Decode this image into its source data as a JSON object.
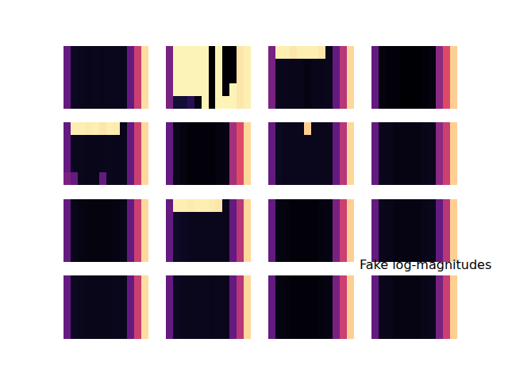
{
  "chart_data": {
    "type": "heatmap",
    "title": "Fake log-magnitudes",
    "zlim": [
      0,
      1
    ],
    "tick_labels": false,
    "panels": [
      {
        "cells": [
          [
            0.3,
            0.06,
            0.05,
            0.04,
            0.05,
            0.04,
            0.05,
            0.05,
            0.05,
            0.3,
            0.55,
            0.93
          ],
          [
            0.3,
            0.06,
            0.05,
            0.04,
            0.05,
            0.04,
            0.05,
            0.05,
            0.05,
            0.3,
            0.55,
            0.93
          ],
          [
            0.3,
            0.06,
            0.05,
            0.04,
            0.05,
            0.04,
            0.05,
            0.05,
            0.05,
            0.3,
            0.55,
            0.93
          ],
          [
            0.3,
            0.06,
            0.05,
            0.04,
            0.05,
            0.04,
            0.05,
            0.05,
            0.05,
            0.3,
            0.55,
            0.93
          ],
          [
            0.3,
            0.06,
            0.05,
            0.04,
            0.05,
            0.04,
            0.05,
            0.05,
            0.05,
            0.3,
            0.55,
            0.93
          ]
        ]
      },
      {
        "cells": [
          [
            0.35,
            0.98,
            0.98,
            0.98,
            0.98,
            0.98,
            0.0,
            0.98,
            0.0,
            0.0,
            0.95,
            0.97
          ],
          [
            0.35,
            0.98,
            0.98,
            0.98,
            0.98,
            0.98,
            0.0,
            0.98,
            0.0,
            0.0,
            0.95,
            0.97
          ],
          [
            0.35,
            0.98,
            0.98,
            0.98,
            0.98,
            0.98,
            0.0,
            0.98,
            0.0,
            0.0,
            0.95,
            0.97
          ],
          [
            0.35,
            0.98,
            0.98,
            0.98,
            0.98,
            0.98,
            0.0,
            0.98,
            0.0,
            0.98,
            0.95,
            0.97
          ],
          [
            0.35,
            0.1,
            0.1,
            0.15,
            0.02,
            0.98,
            0.0,
            0.98,
            0.98,
            0.98,
            0.95,
            0.97
          ]
        ]
      },
      {
        "cells": [
          [
            0.35,
            0.97,
            0.97,
            0.95,
            0.97,
            0.97,
            0.97,
            0.95,
            0.04,
            0.3,
            0.5,
            0.92
          ],
          [
            0.35,
            0.05,
            0.05,
            0.04,
            0.04,
            0.03,
            0.04,
            0.04,
            0.05,
            0.3,
            0.5,
            0.92
          ],
          [
            0.35,
            0.05,
            0.05,
            0.04,
            0.04,
            0.03,
            0.04,
            0.04,
            0.05,
            0.3,
            0.5,
            0.92
          ],
          [
            0.35,
            0.05,
            0.05,
            0.04,
            0.04,
            0.03,
            0.04,
            0.04,
            0.05,
            0.3,
            0.5,
            0.92
          ],
          [
            0.35,
            0.05,
            0.05,
            0.04,
            0.04,
            0.03,
            0.04,
            0.04,
            0.05,
            0.3,
            0.5,
            0.92
          ]
        ]
      },
      {
        "cells": [
          [
            0.3,
            0.02,
            0.01,
            0.01,
            0.0,
            0.0,
            0.0,
            0.01,
            0.02,
            0.4,
            0.6,
            0.9
          ],
          [
            0.3,
            0.02,
            0.01,
            0.01,
            0.0,
            0.0,
            0.0,
            0.01,
            0.02,
            0.4,
            0.6,
            0.9
          ],
          [
            0.3,
            0.02,
            0.01,
            0.01,
            0.0,
            0.0,
            0.0,
            0.01,
            0.02,
            0.4,
            0.6,
            0.9
          ],
          [
            0.3,
            0.02,
            0.01,
            0.01,
            0.0,
            0.0,
            0.0,
            0.01,
            0.02,
            0.4,
            0.6,
            0.9
          ],
          [
            0.3,
            0.02,
            0.01,
            0.01,
            0.0,
            0.0,
            0.0,
            0.01,
            0.02,
            0.4,
            0.6,
            0.9
          ]
        ]
      },
      {
        "cells": [
          [
            0.3,
            0.97,
            0.97,
            0.96,
            0.97,
            0.95,
            0.97,
            0.96,
            0.04,
            0.3,
            0.55,
            0.92
          ],
          [
            0.3,
            0.05,
            0.05,
            0.04,
            0.04,
            0.04,
            0.05,
            0.04,
            0.05,
            0.3,
            0.55,
            0.92
          ],
          [
            0.3,
            0.05,
            0.05,
            0.04,
            0.04,
            0.04,
            0.05,
            0.04,
            0.05,
            0.3,
            0.55,
            0.92
          ],
          [
            0.3,
            0.05,
            0.05,
            0.04,
            0.04,
            0.04,
            0.05,
            0.04,
            0.05,
            0.3,
            0.55,
            0.92
          ],
          [
            0.35,
            0.3,
            0.05,
            0.04,
            0.04,
            0.3,
            0.05,
            0.04,
            0.05,
            0.3,
            0.55,
            0.92
          ]
        ]
      },
      {
        "cells": [
          [
            0.3,
            0.04,
            0.02,
            0.01,
            0.01,
            0.01,
            0.01,
            0.02,
            0.03,
            0.45,
            0.6,
            0.92
          ],
          [
            0.3,
            0.04,
            0.02,
            0.01,
            0.01,
            0.01,
            0.01,
            0.02,
            0.03,
            0.45,
            0.6,
            0.92
          ],
          [
            0.3,
            0.04,
            0.02,
            0.01,
            0.01,
            0.01,
            0.01,
            0.02,
            0.03,
            0.45,
            0.6,
            0.92
          ],
          [
            0.3,
            0.04,
            0.02,
            0.01,
            0.01,
            0.01,
            0.01,
            0.02,
            0.03,
            0.45,
            0.6,
            0.92
          ],
          [
            0.3,
            0.04,
            0.02,
            0.01,
            0.01,
            0.01,
            0.01,
            0.02,
            0.03,
            0.45,
            0.6,
            0.92
          ]
        ]
      },
      {
        "cells": [
          [
            0.3,
            0.06,
            0.05,
            0.05,
            0.05,
            0.9,
            0.05,
            0.05,
            0.05,
            0.3,
            0.5,
            0.92
          ],
          [
            0.3,
            0.06,
            0.05,
            0.05,
            0.05,
            0.05,
            0.05,
            0.05,
            0.05,
            0.3,
            0.5,
            0.92
          ],
          [
            0.3,
            0.06,
            0.05,
            0.05,
            0.05,
            0.05,
            0.05,
            0.05,
            0.05,
            0.3,
            0.5,
            0.92
          ],
          [
            0.3,
            0.06,
            0.05,
            0.05,
            0.05,
            0.05,
            0.05,
            0.05,
            0.05,
            0.3,
            0.5,
            0.92
          ],
          [
            0.3,
            0.06,
            0.05,
            0.05,
            0.05,
            0.05,
            0.05,
            0.05,
            0.05,
            0.3,
            0.5,
            0.92
          ]
        ]
      },
      {
        "cells": [
          [
            0.3,
            0.05,
            0.04,
            0.03,
            0.03,
            0.03,
            0.03,
            0.04,
            0.05,
            0.4,
            0.55,
            0.9
          ],
          [
            0.3,
            0.05,
            0.04,
            0.03,
            0.03,
            0.03,
            0.03,
            0.04,
            0.05,
            0.4,
            0.55,
            0.9
          ],
          [
            0.3,
            0.05,
            0.04,
            0.03,
            0.03,
            0.03,
            0.03,
            0.04,
            0.05,
            0.4,
            0.55,
            0.9
          ],
          [
            0.3,
            0.05,
            0.04,
            0.03,
            0.03,
            0.03,
            0.03,
            0.04,
            0.05,
            0.4,
            0.55,
            0.9
          ],
          [
            0.3,
            0.05,
            0.04,
            0.03,
            0.03,
            0.03,
            0.03,
            0.04,
            0.05,
            0.4,
            0.55,
            0.9
          ]
        ]
      },
      {
        "cells": [
          [
            0.3,
            0.04,
            0.03,
            0.02,
            0.02,
            0.02,
            0.02,
            0.03,
            0.04,
            0.3,
            0.55,
            0.92
          ],
          [
            0.3,
            0.04,
            0.03,
            0.02,
            0.02,
            0.02,
            0.02,
            0.03,
            0.04,
            0.3,
            0.55,
            0.92
          ],
          [
            0.3,
            0.04,
            0.03,
            0.02,
            0.02,
            0.02,
            0.02,
            0.03,
            0.04,
            0.3,
            0.55,
            0.92
          ],
          [
            0.3,
            0.04,
            0.03,
            0.02,
            0.02,
            0.02,
            0.02,
            0.03,
            0.04,
            0.3,
            0.55,
            0.92
          ],
          [
            0.3,
            0.04,
            0.03,
            0.02,
            0.02,
            0.02,
            0.02,
            0.03,
            0.04,
            0.3,
            0.55,
            0.92
          ]
        ]
      },
      {
        "cells": [
          [
            0.3,
            0.97,
            0.97,
            0.96,
            0.97,
            0.97,
            0.96,
            0.95,
            0.05,
            0.3,
            0.5,
            0.92
          ],
          [
            0.3,
            0.07,
            0.06,
            0.05,
            0.05,
            0.05,
            0.05,
            0.05,
            0.05,
            0.3,
            0.5,
            0.92
          ],
          [
            0.3,
            0.07,
            0.06,
            0.05,
            0.05,
            0.05,
            0.05,
            0.05,
            0.05,
            0.3,
            0.5,
            0.92
          ],
          [
            0.3,
            0.07,
            0.06,
            0.05,
            0.05,
            0.05,
            0.05,
            0.05,
            0.05,
            0.3,
            0.5,
            0.92
          ],
          [
            0.3,
            0.07,
            0.06,
            0.05,
            0.05,
            0.05,
            0.05,
            0.05,
            0.05,
            0.3,
            0.5,
            0.92
          ]
        ]
      },
      {
        "cells": [
          [
            0.3,
            0.03,
            0.02,
            0.01,
            0.01,
            0.01,
            0.01,
            0.02,
            0.03,
            0.35,
            0.55,
            0.9
          ],
          [
            0.3,
            0.03,
            0.02,
            0.01,
            0.01,
            0.01,
            0.01,
            0.02,
            0.03,
            0.35,
            0.55,
            0.9
          ],
          [
            0.3,
            0.03,
            0.02,
            0.01,
            0.01,
            0.01,
            0.01,
            0.02,
            0.03,
            0.35,
            0.55,
            0.9
          ],
          [
            0.3,
            0.03,
            0.02,
            0.01,
            0.01,
            0.01,
            0.01,
            0.02,
            0.03,
            0.35,
            0.55,
            0.9
          ],
          [
            0.3,
            0.03,
            0.02,
            0.01,
            0.01,
            0.01,
            0.01,
            0.02,
            0.03,
            0.35,
            0.55,
            0.9
          ]
        ]
      },
      {
        "cells": [
          [
            0.3,
            0.05,
            0.04,
            0.03,
            0.03,
            0.03,
            0.03,
            0.04,
            0.05,
            0.3,
            0.5,
            0.9
          ],
          [
            0.3,
            0.05,
            0.04,
            0.03,
            0.03,
            0.03,
            0.03,
            0.04,
            0.05,
            0.3,
            0.5,
            0.9
          ],
          [
            0.3,
            0.05,
            0.04,
            0.03,
            0.03,
            0.03,
            0.03,
            0.04,
            0.05,
            0.3,
            0.5,
            0.9
          ],
          [
            0.3,
            0.05,
            0.04,
            0.03,
            0.03,
            0.03,
            0.03,
            0.04,
            0.05,
            0.3,
            0.5,
            0.9
          ],
          [
            0.3,
            0.05,
            0.04,
            0.03,
            0.03,
            0.03,
            0.03,
            0.04,
            0.05,
            0.3,
            0.5,
            0.9
          ]
        ]
      },
      {
        "cells": [
          [
            0.3,
            0.06,
            0.05,
            0.04,
            0.04,
            0.04,
            0.04,
            0.05,
            0.05,
            0.3,
            0.55,
            0.93
          ],
          [
            0.3,
            0.06,
            0.05,
            0.04,
            0.04,
            0.04,
            0.04,
            0.05,
            0.05,
            0.3,
            0.55,
            0.93
          ],
          [
            0.3,
            0.06,
            0.05,
            0.04,
            0.04,
            0.04,
            0.04,
            0.05,
            0.05,
            0.3,
            0.55,
            0.93
          ],
          [
            0.3,
            0.06,
            0.05,
            0.04,
            0.04,
            0.04,
            0.04,
            0.05,
            0.05,
            0.3,
            0.55,
            0.93
          ],
          [
            0.3,
            0.06,
            0.05,
            0.04,
            0.04,
            0.04,
            0.04,
            0.05,
            0.05,
            0.3,
            0.55,
            0.93
          ]
        ]
      },
      {
        "cells": [
          [
            0.3,
            0.06,
            0.05,
            0.05,
            0.05,
            0.05,
            0.04,
            0.05,
            0.05,
            0.3,
            0.5,
            0.92
          ],
          [
            0.3,
            0.06,
            0.05,
            0.05,
            0.05,
            0.05,
            0.04,
            0.05,
            0.05,
            0.3,
            0.5,
            0.92
          ],
          [
            0.3,
            0.06,
            0.05,
            0.05,
            0.05,
            0.05,
            0.04,
            0.05,
            0.05,
            0.3,
            0.5,
            0.92
          ],
          [
            0.3,
            0.06,
            0.05,
            0.05,
            0.05,
            0.05,
            0.04,
            0.05,
            0.05,
            0.3,
            0.5,
            0.92
          ],
          [
            0.3,
            0.06,
            0.05,
            0.05,
            0.05,
            0.05,
            0.04,
            0.05,
            0.05,
            0.3,
            0.5,
            0.92
          ]
        ]
      },
      {
        "cells": [
          [
            0.3,
            0.03,
            0.02,
            0.01,
            0.01,
            0.01,
            0.01,
            0.02,
            0.03,
            0.35,
            0.55,
            0.9
          ],
          [
            0.3,
            0.03,
            0.02,
            0.01,
            0.01,
            0.01,
            0.01,
            0.02,
            0.03,
            0.35,
            0.55,
            0.9
          ],
          [
            0.3,
            0.03,
            0.02,
            0.01,
            0.01,
            0.01,
            0.01,
            0.02,
            0.03,
            0.35,
            0.55,
            0.9
          ],
          [
            0.3,
            0.03,
            0.02,
            0.01,
            0.01,
            0.01,
            0.01,
            0.02,
            0.03,
            0.35,
            0.55,
            0.9
          ],
          [
            0.3,
            0.03,
            0.02,
            0.01,
            0.01,
            0.01,
            0.01,
            0.02,
            0.03,
            0.35,
            0.55,
            0.9
          ]
        ]
      },
      {
        "cells": [
          [
            0.3,
            0.05,
            0.04,
            0.03,
            0.03,
            0.03,
            0.03,
            0.04,
            0.05,
            0.35,
            0.55,
            0.9
          ],
          [
            0.3,
            0.05,
            0.04,
            0.03,
            0.03,
            0.03,
            0.03,
            0.04,
            0.05,
            0.35,
            0.55,
            0.9
          ],
          [
            0.3,
            0.05,
            0.04,
            0.03,
            0.03,
            0.03,
            0.03,
            0.04,
            0.05,
            0.35,
            0.55,
            0.9
          ],
          [
            0.3,
            0.05,
            0.04,
            0.03,
            0.03,
            0.03,
            0.03,
            0.04,
            0.05,
            0.35,
            0.55,
            0.9
          ],
          [
            0.3,
            0.05,
            0.04,
            0.03,
            0.03,
            0.03,
            0.03,
            0.04,
            0.05,
            0.35,
            0.55,
            0.9
          ]
        ]
      }
    ]
  }
}
